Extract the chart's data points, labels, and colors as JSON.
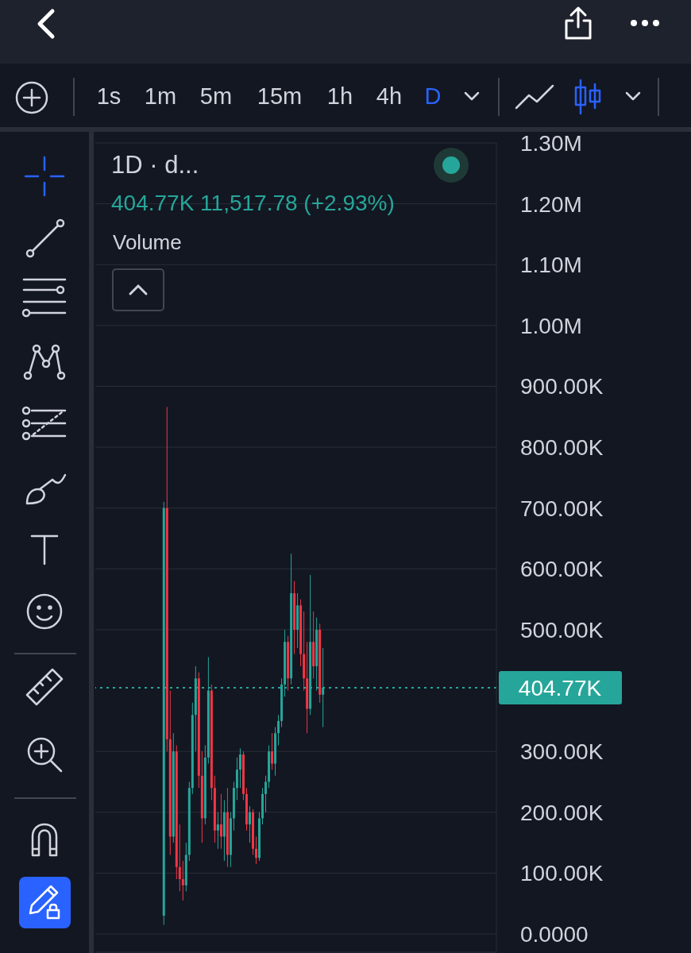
{
  "chart_data": {
    "type": "candlestick",
    "title": "1D · d...",
    "annotations": [
      "404.77K 11,517.78 (+2.93%)",
      "Volume",
      "1s",
      "1m",
      "5m",
      "15m",
      "1h",
      "4h",
      "D"
    ],
    "categories": [
      null,
      null,
      null,
      null,
      null,
      null,
      null,
      null,
      null,
      null,
      null,
      null,
      null,
      null,
      null,
      null,
      null,
      null,
      null,
      null,
      null,
      null,
      null,
      null,
      null,
      null,
      null,
      null,
      null,
      null,
      null,
      null,
      null,
      null,
      null,
      null,
      null,
      null,
      null,
      null,
      null,
      null,
      null,
      null,
      null,
      null,
      null,
      null,
      null,
      null,
      null,
      null,
      null,
      null,
      null,
      null,
      null,
      null,
      null,
      null,
      null,
      null,
      null,
      null,
      null,
      null,
      null,
      null,
      null,
      null,
      null,
      null,
      null,
      null,
      null,
      null,
      null,
      null,
      null,
      null,
      null,
      null,
      null,
      null,
      null,
      null,
      null,
      null,
      null,
      null,
      null,
      null,
      null,
      null,
      null,
      null,
      null,
      null,
      null,
      null,
      null,
      null,
      null,
      null,
      null,
      null,
      null,
      null,
      null,
      null,
      null,
      null,
      null,
      null,
      null,
      null,
      null,
      null,
      null,
      null,
      null,
      null,
      null,
      null,
      null,
      null
    ],
    "ohlc": [
      null,
      null,
      null,
      null,
      null,
      null,
      null,
      null,
      null,
      null,
      null,
      null,
      null,
      null,
      null,
      null,
      null,
      null,
      null,
      null,
      null,
      [
        30000,
        710000,
        15000,
        700000
      ],
      [
        700000,
        866000,
        300000,
        320000
      ],
      [
        320000,
        400000,
        130000,
        160000
      ],
      [
        160000,
        330000,
        150000,
        300000
      ],
      [
        300000,
        310000,
        90000,
        110000
      ],
      [
        110000,
        180000,
        70000,
        90000
      ],
      [
        90000,
        120000,
        55000,
        80000
      ],
      [
        80000,
        150000,
        70000,
        130000
      ],
      [
        130000,
        250000,
        120000,
        240000
      ],
      [
        240000,
        380000,
        230000,
        360000
      ],
      [
        360000,
        440000,
        300000,
        420000
      ],
      [
        420000,
        430000,
        240000,
        260000
      ],
      [
        260000,
        300000,
        150000,
        190000
      ],
      [
        190000,
        310000,
        180000,
        290000
      ],
      [
        290000,
        455000,
        280000,
        400000
      ],
      [
        400000,
        410000,
        220000,
        240000
      ],
      [
        240000,
        260000,
        150000,
        170000
      ],
      [
        170000,
        200000,
        140000,
        180000
      ],
      [
        180000,
        230000,
        140000,
        160000
      ],
      [
        160000,
        220000,
        120000,
        200000
      ],
      [
        200000,
        240000,
        110000,
        130000
      ],
      [
        130000,
        200000,
        110000,
        190000
      ],
      [
        190000,
        250000,
        170000,
        240000
      ],
      [
        240000,
        290000,
        220000,
        270000
      ],
      [
        270000,
        305000,
        240000,
        295000
      ],
      [
        295000,
        300000,
        220000,
        230000
      ],
      [
        230000,
        240000,
        170000,
        180000
      ],
      [
        180000,
        210000,
        150000,
        200000
      ],
      [
        200000,
        205000,
        130000,
        140000
      ],
      [
        140000,
        160000,
        115000,
        125000
      ],
      [
        125000,
        200000,
        120000,
        190000
      ],
      [
        190000,
        240000,
        180000,
        230000
      ],
      [
        230000,
        260000,
        200000,
        250000
      ],
      [
        250000,
        310000,
        240000,
        300000
      ],
      [
        300000,
        330000,
        270000,
        280000
      ],
      [
        280000,
        340000,
        260000,
        330000
      ],
      [
        330000,
        360000,
        310000,
        350000
      ],
      [
        350000,
        420000,
        340000,
        410000
      ],
      [
        410000,
        500000,
        390000,
        480000
      ],
      [
        480000,
        490000,
        400000,
        420000
      ],
      [
        420000,
        625000,
        410000,
        560000
      ],
      [
        560000,
        580000,
        460000,
        500000
      ],
      [
        500000,
        560000,
        470000,
        540000
      ],
      [
        540000,
        550000,
        440000,
        460000
      ],
      [
        460000,
        530000,
        400000,
        420000
      ],
      [
        420000,
        480000,
        330000,
        370000
      ],
      [
        370000,
        590000,
        360000,
        480000
      ],
      [
        480000,
        530000,
        420000,
        440000
      ],
      [
        440000,
        520000,
        400000,
        500000
      ],
      [
        500000,
        510000,
        380000,
        393250
      ],
      [
        393250,
        470000,
        340000,
        404770
      ],
      null,
      null,
      null,
      null,
      null,
      null,
      null,
      null,
      null,
      null,
      null,
      null,
      null,
      null,
      null,
      null,
      null,
      null,
      null,
      null,
      null,
      null,
      null,
      null,
      null,
      null,
      null,
      null,
      null,
      null,
      null,
      null,
      null,
      null,
      null,
      null,
      null,
      null,
      null,
      null,
      null,
      null,
      null,
      null,
      null,
      null,
      null,
      null,
      null,
      null,
      null,
      null,
      null,
      null
    ],
    "colors": [
      null,
      null,
      null,
      null,
      null,
      null,
      null,
      null,
      null,
      null,
      null,
      null,
      null,
      null,
      null,
      null,
      null,
      null,
      null,
      null,
      null,
      "#26a69a",
      "#f23645",
      "#f23645",
      "#26a69a",
      "#f23645",
      "#f23645",
      "#f23645",
      "#26a69a",
      "#26a69a",
      "#26a69a",
      "#26a69a",
      "#f23645",
      "#f23645",
      "#26a69a",
      "#26a69a",
      "#f23645",
      "#f23645",
      "#26a69a",
      "#f23645",
      "#26a69a",
      "#f23645",
      "#26a69a",
      "#26a69a",
      "#26a69a",
      "#26a69a",
      "#f23645",
      "#f23645",
      "#26a69a",
      "#f23645",
      "#f23645",
      "#26a69a",
      "#26a69a",
      "#26a69a",
      "#26a69a",
      "#f23645",
      "#26a69a",
      "#26a69a",
      "#26a69a",
      "#26a69a",
      "#f23645",
      "#26a69a",
      "#f23645",
      "#26a69a",
      "#f23645",
      "#f23645",
      "#f23645",
      "#26a69a",
      "#f23645",
      "#26a69a",
      "#f23645",
      "#26a69a",
      null,
      null,
      null,
      null,
      null,
      null,
      null,
      null,
      null,
      null,
      null,
      null,
      null,
      null,
      null,
      null,
      null,
      null,
      null,
      null,
      null,
      null,
      null,
      null,
      null,
      null,
      null,
      null,
      null,
      null,
      null,
      null,
      null,
      null,
      null,
      null,
      null,
      null,
      null,
      null,
      null,
      null,
      null,
      null,
      null,
      null,
      null,
      null,
      null,
      null,
      null,
      null,
      null,
      null
    ],
    "ylim": [
      -30000,
      1300000
    ],
    "yticks": [
      {
        "value": 0,
        "label": "0.0000"
      },
      {
        "value": 100000,
        "label": "100.00K"
      },
      {
        "value": 200000,
        "label": "200.00K"
      },
      {
        "value": 300000,
        "label": "300.00K"
      },
      {
        "value": 500000,
        "label": "500.00K"
      },
      {
        "value": 600000,
        "label": "600.00K"
      },
      {
        "value": 700000,
        "label": "700.00K"
      },
      {
        "value": 800000,
        "label": "800.00K"
      },
      {
        "value": 900000,
        "label": "900.00K"
      },
      {
        "value": 1000000,
        "label": "1.00M"
      },
      {
        "value": 1100000,
        "label": "1.10M"
      },
      {
        "value": 1200000,
        "label": "1.20M"
      },
      {
        "value": 1300000,
        "label": "1.30M"
      }
    ],
    "ref_lines": [
      {
        "axis": "y",
        "value": 404770,
        "label": "404.77K",
        "color": "#26a69a",
        "line_style": "dotted"
      }
    ],
    "grid": "y"
  }
}
